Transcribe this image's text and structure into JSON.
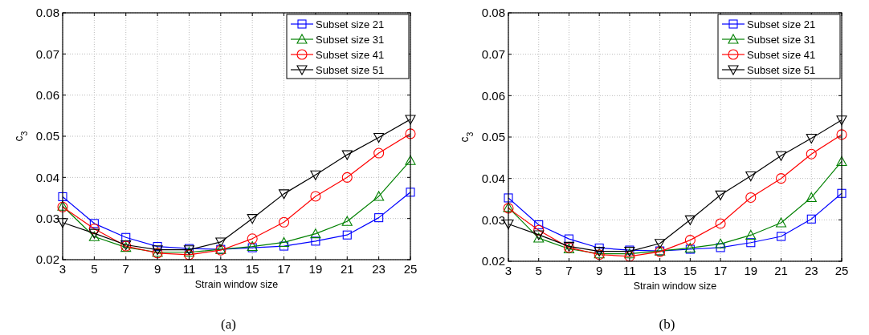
{
  "chart_data": [
    {
      "type": "line",
      "xlabel": "Strain window size",
      "ylabel": "c$_{3}$",
      "x": [
        3,
        5,
        7,
        9,
        11,
        13,
        15,
        17,
        19,
        21,
        23,
        25
      ],
      "xlim": [
        3,
        25
      ],
      "xticks": [
        3,
        5,
        7,
        9,
        11,
        13,
        15,
        17,
        19,
        21,
        23,
        25
      ],
      "ylim": [
        0.02,
        0.08
      ],
      "yticks": [
        {
          "value": 0.02,
          "label": "0.02"
        },
        {
          "value": 0.03,
          "label": "0.03"
        },
        {
          "value": 0.04,
          "label": "0.04"
        },
        {
          "value": 0.05,
          "label": "0.05"
        },
        {
          "value": 0.06,
          "label": "0.06"
        },
        {
          "value": 0.07,
          "label": "0.07"
        },
        {
          "value": 0.08,
          "label": "0.08"
        }
      ],
      "grid": true,
      "legend": "top right",
      "annotations": [
        "(a)"
      ],
      "series": [
        {
          "name": "Subset size 21",
          "color": "#0000ff",
          "marker": "square",
          "values": [
            0.0353,
            0.0288,
            0.0254,
            0.0232,
            0.0227,
            0.0225,
            0.0229,
            0.0233,
            0.0245,
            0.026,
            0.0302,
            0.0364
          ]
        },
        {
          "name": "Subset size 31",
          "color": "#008000",
          "marker": "triangle",
          "values": [
            0.033,
            0.0256,
            0.023,
            0.0218,
            0.0218,
            0.0225,
            0.0232,
            0.0242,
            0.0263,
            0.0293,
            0.0354,
            0.0441
          ]
        },
        {
          "name": "Subset size 41",
          "color": "#ff0000",
          "marker": "circle",
          "values": [
            0.0328,
            0.0275,
            0.0233,
            0.0216,
            0.0212,
            0.0223,
            0.0251,
            0.0291,
            0.0354,
            0.04,
            0.0459,
            0.0506
          ]
        },
        {
          "name": "Subset size 51",
          "color": "#000000",
          "marker": "triangle-down",
          "values": [
            0.029,
            0.0264,
            0.0236,
            0.0224,
            0.0224,
            0.0243,
            0.03,
            0.036,
            0.0406,
            0.0455,
            0.0497,
            0.0541
          ]
        }
      ]
    },
    {
      "type": "line",
      "xlabel": "Strain window size",
      "ylabel": "c$_{3}$",
      "x": [
        3,
        5,
        7,
        9,
        11,
        13,
        15,
        17,
        19,
        21,
        23,
        25
      ],
      "xlim": [
        3,
        25
      ],
      "xticks": [
        3,
        5,
        7,
        9,
        11,
        13,
        15,
        17,
        19,
        21,
        23,
        25
      ],
      "ylim": [
        0.02,
        0.08
      ],
      "yticks": [
        {
          "value": 0.02,
          "label": "0.02"
        },
        {
          "value": 0.03,
          "label": "0.03"
        },
        {
          "value": 0.04,
          "label": "0.04"
        },
        {
          "value": 0.05,
          "label": "0.05"
        },
        {
          "value": 0.06,
          "label": "0.06"
        },
        {
          "value": 0.07,
          "label": "0.07"
        },
        {
          "value": 0.08,
          "label": "0.08"
        }
      ],
      "grid": true,
      "legend": "top right",
      "annotations": [
        "(b)"
      ],
      "series": [
        {
          "name": "Subset size 21",
          "color": "#0000ff",
          "marker": "square",
          "values": [
            0.0353,
            0.0288,
            0.0254,
            0.0232,
            0.0227,
            0.0225,
            0.0229,
            0.0233,
            0.0245,
            0.026,
            0.0302,
            0.0364
          ]
        },
        {
          "name": "Subset size 31",
          "color": "#008000",
          "marker": "triangle",
          "values": [
            0.033,
            0.0256,
            0.023,
            0.0218,
            0.0218,
            0.0225,
            0.0232,
            0.0242,
            0.0263,
            0.0293,
            0.0354,
            0.0441
          ]
        },
        {
          "name": "Subset size 41",
          "color": "#ff0000",
          "marker": "circle",
          "values": [
            0.0328,
            0.0275,
            0.0233,
            0.0216,
            0.0212,
            0.0223,
            0.0251,
            0.0291,
            0.0354,
            0.04,
            0.0459,
            0.0506
          ]
        },
        {
          "name": "Subset size 51",
          "color": "#000000",
          "marker": "triangle-down",
          "values": [
            0.029,
            0.0264,
            0.0236,
            0.0224,
            0.0224,
            0.0243,
            0.03,
            0.036,
            0.0406,
            0.0455,
            0.0497,
            0.0541
          ]
        }
      ]
    }
  ]
}
